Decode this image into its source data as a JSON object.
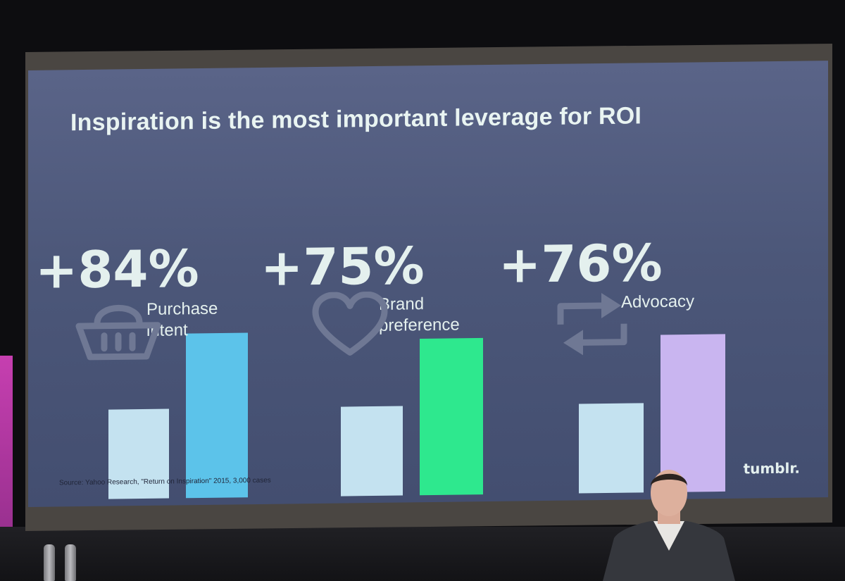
{
  "slide": {
    "title": "Inspiration is the most important leverage for ROI",
    "source": "Source: Yahoo Research, \"Return on Inspiration\" 2015, 3,000 cases",
    "logo": "tumblr."
  },
  "colors": {
    "baseline_bar": "#c4e2f0",
    "purchase_bar": "#5cc3ea",
    "brand_bar": "#2ee88e",
    "advocacy_bar": "#c9b5f0"
  },
  "chart_data": {
    "type": "bar",
    "groups": [
      {
        "stat": "+84%",
        "label_line1": "Purchase",
        "label_line2": "intent",
        "icon": "shopping-basket-icon",
        "values": [
          100,
          184
        ],
        "accent": "#5cc3ea"
      },
      {
        "stat": "+75%",
        "label_line1": "Brand",
        "label_line2": "preference",
        "icon": "heart-icon",
        "values": [
          100,
          175
        ],
        "accent": "#2ee88e"
      },
      {
        "stat": "+76%",
        "label_line1": "Advocacy",
        "label_line2": "",
        "icon": "repost-arrows-icon",
        "values": [
          100,
          176
        ],
        "accent": "#c9b5f0"
      }
    ],
    "baseline_color": "#c4e2f0"
  }
}
